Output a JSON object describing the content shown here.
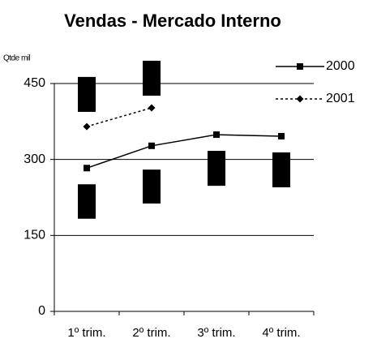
{
  "chart_data": {
    "type": "line",
    "title": "Vendas - Mercado Interno",
    "y_label": "Qtde mil",
    "categories": [
      "1º trim.",
      "2º trim.",
      "3º trim.",
      "4º trim."
    ],
    "series": [
      {
        "name": "2000",
        "color": "#000000",
        "dash": "solid",
        "values": [
          283,
          327,
          349,
          346
        ]
      },
      {
        "name": "2001",
        "color": "#000000",
        "dash": "dotted",
        "values": [
          365,
          402,
          null,
          null
        ]
      }
    ],
    "ranges": [
      {
        "color": "#000000",
        "low": [
          394,
          426,
          null,
          null
        ],
        "high": [
          463,
          495,
          null,
          null
        ]
      },
      {
        "color": "#000000",
        "low": [
          183,
          213,
          248,
          245
        ],
        "high": [
          251,
          280,
          317,
          314
        ]
      }
    ],
    "ylim": [
      0,
      450
    ],
    "yticks": [
      0,
      150,
      300,
      450
    ],
    "grid": true,
    "legend": "right"
  }
}
